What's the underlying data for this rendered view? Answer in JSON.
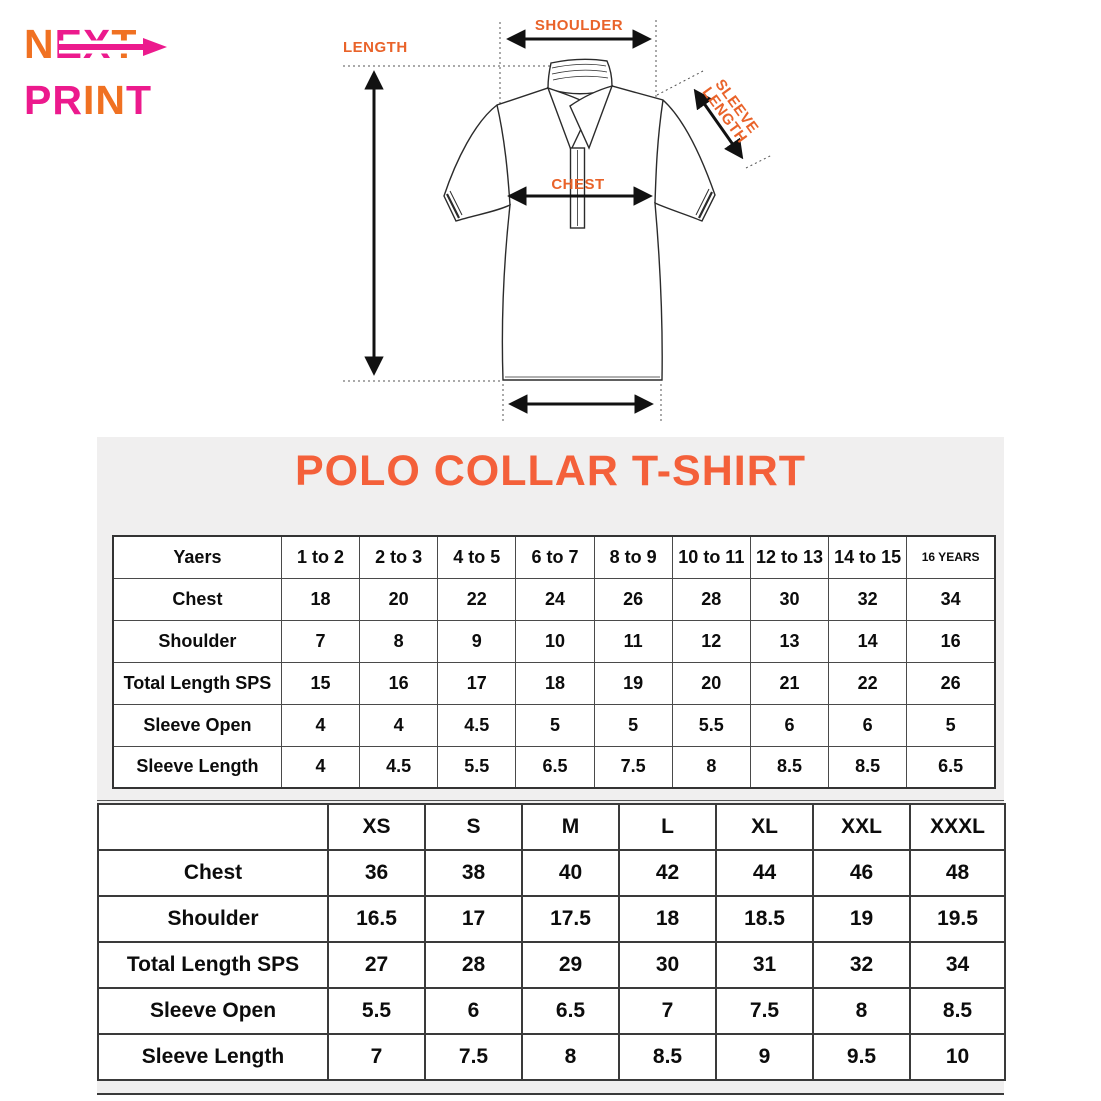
{
  "colors": {
    "logo_orange": "#F07122",
    "logo_pink": "#EC1A8D",
    "title_orange": "#F4603A",
    "diagram_label_orange": "#E9632A",
    "panel_bg": "#F0EFEF"
  },
  "logo": {
    "line1": [
      {
        "t": "N",
        "c": "orange"
      },
      {
        "t": "E",
        "c": "pink"
      },
      {
        "t": "X",
        "c": "pink"
      },
      {
        "t": "T",
        "c": "orange"
      }
    ],
    "line2": [
      {
        "t": "P",
        "c": "pink"
      },
      {
        "t": "R",
        "c": "pink"
      },
      {
        "t": "I",
        "c": "orange"
      },
      {
        "t": "N",
        "c": "orange"
      },
      {
        "t": "T",
        "c": "pink"
      }
    ]
  },
  "diagram": {
    "length_label": "LENGTH",
    "shoulder_label": "SHOULDER",
    "chest_label": "CHEST",
    "sleeve_label_line1": "SLEEVE",
    "sleeve_label_line2": "LENGTH"
  },
  "title": "POLO COLLAR T-SHIRT",
  "kids_table": {
    "header": [
      "Yaers",
      "1 to 2",
      "2 to 3",
      "4 to 5",
      "6 to 7",
      "8 to 9",
      "10 to 11",
      "12 to 13",
      "14 to 15",
      "16 YEARS"
    ],
    "rows": [
      [
        "Chest",
        "18",
        "20",
        "22",
        "24",
        "26",
        "28",
        "30",
        "32",
        "34"
      ],
      [
        "Shoulder",
        "7",
        "8",
        "9",
        "10",
        "11",
        "12",
        "13",
        "14",
        "16"
      ],
      [
        "Total Length SPS",
        "15",
        "16",
        "17",
        "18",
        "19",
        "20",
        "21",
        "22",
        "26"
      ],
      [
        "Sleeve Open",
        "4",
        "4",
        "4.5",
        "5",
        "5",
        "5.5",
        "6",
        "6",
        "5"
      ],
      [
        "Sleeve Length",
        "4",
        "4.5",
        "5.5",
        "6.5",
        "7.5",
        "8",
        "8.5",
        "8.5",
        "6.5"
      ]
    ]
  },
  "adult_table": {
    "header": [
      "",
      "XS",
      "S",
      "M",
      "L",
      "XL",
      "XXL",
      "XXXL"
    ],
    "rows": [
      [
        "Chest",
        "36",
        "38",
        "40",
        "42",
        "44",
        "46",
        "48"
      ],
      [
        "Shoulder",
        "16.5",
        "17",
        "17.5",
        "18",
        "18.5",
        "19",
        "19.5"
      ],
      [
        "Total Length SPS",
        "27",
        "28",
        "29",
        "30",
        "31",
        "32",
        "34"
      ],
      [
        "Sleeve Open",
        "5.5",
        "6",
        "6.5",
        "7",
        "7.5",
        "8",
        "8.5"
      ],
      [
        "Sleeve Length",
        "7",
        "7.5",
        "8",
        "8.5",
        "9",
        "9.5",
        "10"
      ]
    ]
  }
}
